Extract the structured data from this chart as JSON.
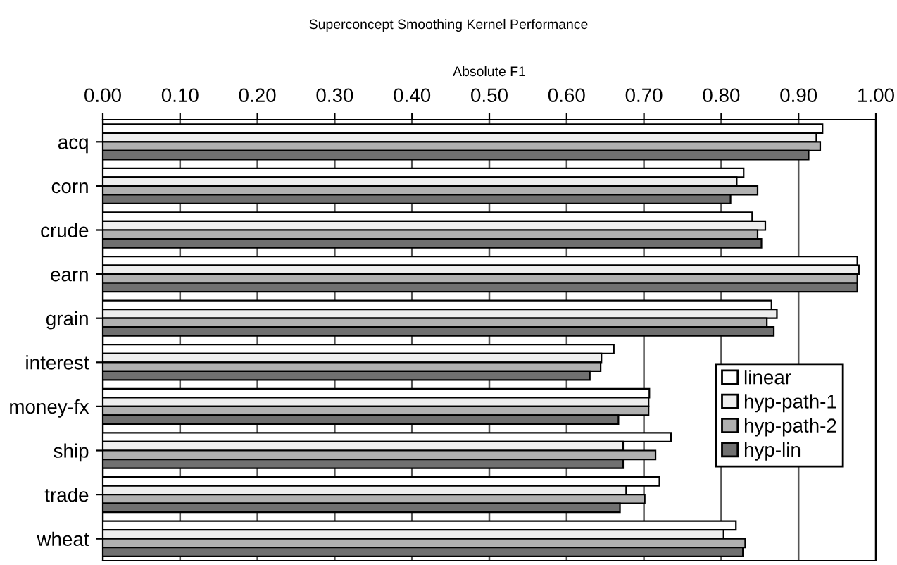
{
  "chart_data": {
    "type": "bar",
    "orientation": "horizontal",
    "title": "Superconcept Smoothing Kernel Performance",
    "xlabel": "Absolute F1",
    "categories": [
      "acq",
      "corn",
      "crude",
      "earn",
      "grain",
      "interest",
      "money-fx",
      "ship",
      "trade",
      "wheat"
    ],
    "series": [
      {
        "name": "linear",
        "color": "#ffffff",
        "values": [
          0.931,
          0.829,
          0.84,
          0.976,
          0.865,
          0.661,
          0.707,
          0.735,
          0.72,
          0.819
        ]
      },
      {
        "name": "hyp-path-1",
        "color": "#eeeeee",
        "values": [
          0.923,
          0.82,
          0.857,
          0.978,
          0.872,
          0.645,
          0.706,
          0.673,
          0.677,
          0.803
        ]
      },
      {
        "name": "hyp-path-2",
        "color": "#b0b0b0",
        "values": [
          0.928,
          0.847,
          0.847,
          0.976,
          0.859,
          0.644,
          0.706,
          0.715,
          0.701,
          0.831
        ]
      },
      {
        "name": "hyp-lin",
        "color": "#707070",
        "values": [
          0.913,
          0.812,
          0.852,
          0.976,
          0.868,
          0.63,
          0.667,
          0.673,
          0.669,
          0.828
        ]
      }
    ],
    "xlim": [
      0,
      1
    ],
    "xticks": [
      {
        "value": 0,
        "label": "0.00"
      },
      {
        "value": 0.1,
        "label": "0.10"
      },
      {
        "value": 0.2,
        "label": "0.20"
      },
      {
        "value": 0.3,
        "label": "0.30"
      },
      {
        "value": 0.4,
        "label": "0.40"
      },
      {
        "value": 0.5,
        "label": "0.50"
      },
      {
        "value": 0.6,
        "label": "0.60"
      },
      {
        "value": 0.7,
        "label": "0.70"
      },
      {
        "value": 0.8,
        "label": "0.80"
      },
      {
        "value": 0.9,
        "label": "0.90"
      },
      {
        "value": 1,
        "label": "1.00"
      }
    ],
    "grid": "x",
    "legend": "right"
  }
}
